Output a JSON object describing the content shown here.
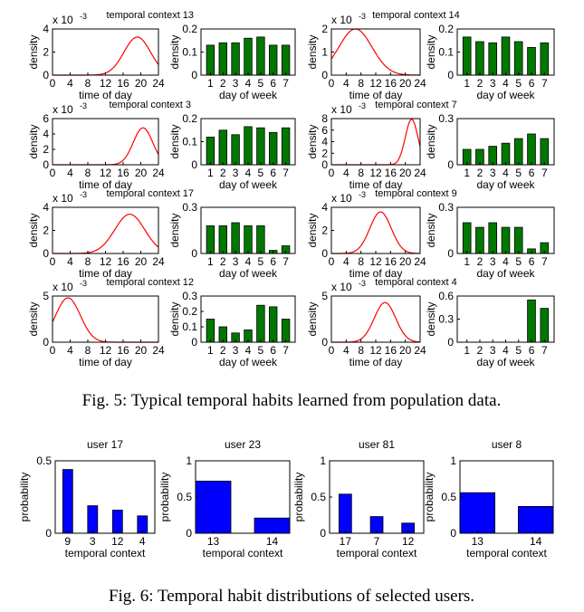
{
  "captions": {
    "fig5": "Fig. 5: Typical temporal habits learned from population data.",
    "fig6": "Fig. 6: Temporal habit distributions of selected users."
  },
  "colors": {
    "curve": "#ff0000",
    "green_bar": "#007800",
    "blue_bar": "#0000ff"
  },
  "chart_data": [
    {
      "type": "line",
      "title": "temporal context 13",
      "xlabel": "time of day",
      "ylabel": "density",
      "scale_label": "x 10",
      "scale_exp": "-3",
      "xlim": [
        0,
        24
      ],
      "ylim": [
        0,
        4
      ],
      "xticks": [
        "0",
        "4",
        "8",
        "12",
        "16",
        "20",
        "24"
      ],
      "yticks": [
        "0",
        "2",
        "4"
      ],
      "series": [
        {
          "type": "gaussian",
          "mean": 19.2,
          "sd": 3.0,
          "peak": 3.3
        }
      ]
    },
    {
      "type": "bar",
      "title": "",
      "xlabel": "day of week",
      "ylabel": "density",
      "ylim": [
        0,
        0.2
      ],
      "yticks": [
        "0",
        "0.1",
        "0.2"
      ],
      "categories": [
        "1",
        "2",
        "3",
        "4",
        "5",
        "6",
        "7"
      ],
      "values": [
        0.13,
        0.14,
        0.14,
        0.16,
        0.165,
        0.13,
        0.13
      ]
    },
    {
      "type": "line",
      "title": "temporal context 14",
      "xlabel": "time of day",
      "ylabel": "density",
      "scale_label": "x 10",
      "scale_exp": "-3",
      "xlim": [
        0,
        24
      ],
      "ylim": [
        0,
        2
      ],
      "xticks": [
        "0",
        "4",
        "8",
        "12",
        "16",
        "20",
        "24"
      ],
      "yticks": [
        "0",
        "1",
        "2"
      ],
      "series": [
        {
          "type": "gaussian",
          "mean": 6.5,
          "sd": 4.5,
          "peak": 2.0
        }
      ]
    },
    {
      "type": "bar",
      "title": "",
      "xlabel": "day of week",
      "ylabel": "density",
      "ylim": [
        0,
        0.2
      ],
      "yticks": [
        "0",
        "0.1",
        "0.2"
      ],
      "categories": [
        "1",
        "2",
        "3",
        "4",
        "5",
        "6",
        "7"
      ],
      "values": [
        0.165,
        0.145,
        0.14,
        0.165,
        0.145,
        0.12,
        0.14
      ]
    },
    {
      "type": "line",
      "title": "temporal context 3",
      "xlabel": "time of day",
      "ylabel": "density",
      "scale_label": "x 10",
      "scale_exp": "-3",
      "xlim": [
        0,
        24
      ],
      "ylim": [
        0,
        6
      ],
      "xticks": [
        "0",
        "4",
        "8",
        "12",
        "16",
        "20",
        "24"
      ],
      "yticks": [
        "0",
        "2",
        "4",
        "6"
      ],
      "series": [
        {
          "type": "gaussian",
          "mean": 20.5,
          "sd": 2.2,
          "peak": 4.8
        }
      ]
    },
    {
      "type": "bar",
      "title": "",
      "xlabel": "day of week",
      "ylabel": "density",
      "ylim": [
        0,
        0.2
      ],
      "yticks": [
        "0",
        "0.1",
        "0.2"
      ],
      "categories": [
        "1",
        "2",
        "3",
        "4",
        "5",
        "6",
        "7"
      ],
      "values": [
        0.12,
        0.15,
        0.13,
        0.165,
        0.16,
        0.14,
        0.16
      ]
    },
    {
      "type": "line",
      "title": "temporal context 7",
      "xlabel": "time of day",
      "ylabel": "density",
      "scale_label": "x 10",
      "scale_exp": "-3",
      "xlim": [
        0,
        24
      ],
      "ylim": [
        0,
        8
      ],
      "xticks": [
        "0",
        "4",
        "8",
        "12",
        "16",
        "20",
        "24"
      ],
      "yticks": [
        "0",
        "2",
        "4",
        "6",
        "8"
      ],
      "series": [
        {
          "type": "gaussian",
          "mean": 21.7,
          "sd": 1.7,
          "peak": 7.9
        }
      ]
    },
    {
      "type": "bar",
      "title": "",
      "xlabel": "day of week",
      "ylabel": "density",
      "ylim": [
        0,
        0.3
      ],
      "yticks": [
        "0",
        "0.3"
      ],
      "categories": [
        "1",
        "2",
        "3",
        "4",
        "5",
        "6",
        "7"
      ],
      "values": [
        0.1,
        0.1,
        0.12,
        0.14,
        0.17,
        0.2,
        0.17
      ]
    },
    {
      "type": "line",
      "title": "temporal context 17",
      "xlabel": "time of day",
      "ylabel": "density",
      "scale_label": "x 10",
      "scale_exp": "-3",
      "xlim": [
        0,
        24
      ],
      "ylim": [
        0,
        4
      ],
      "xticks": [
        "0",
        "4",
        "8",
        "12",
        "16",
        "20",
        "24"
      ],
      "yticks": [
        "0",
        "2",
        "4"
      ],
      "series": [
        {
          "type": "gaussian",
          "mean": 17.5,
          "sd": 3.4,
          "peak": 3.4
        }
      ]
    },
    {
      "type": "bar",
      "title": "",
      "xlabel": "day of week",
      "ylabel": "density",
      "ylim": [
        0,
        0.3
      ],
      "yticks": [
        "0",
        "0.3"
      ],
      "categories": [
        "1",
        "2",
        "3",
        "4",
        "5",
        "6",
        "7"
      ],
      "values": [
        0.18,
        0.18,
        0.2,
        0.18,
        0.18,
        0.02,
        0.05
      ]
    },
    {
      "type": "line",
      "title": "temporal context 9",
      "xlabel": "time of day",
      "ylabel": "density",
      "scale_label": "x 10",
      "scale_exp": "-3",
      "xlim": [
        0,
        24
      ],
      "ylim": [
        0,
        4
      ],
      "xticks": [
        "0",
        "4",
        "8",
        "12",
        "16",
        "20",
        "24"
      ],
      "yticks": [
        "0",
        "2",
        "4"
      ],
      "series": [
        {
          "type": "gaussian",
          "mean": 13.3,
          "sd": 2.9,
          "peak": 3.6
        }
      ]
    },
    {
      "type": "bar",
      "title": "",
      "xlabel": "day of week",
      "ylabel": "density",
      "ylim": [
        0,
        0.3
      ],
      "yticks": [
        "0",
        "0.3"
      ],
      "categories": [
        "1",
        "2",
        "3",
        "4",
        "5",
        "6",
        "7"
      ],
      "values": [
        0.2,
        0.17,
        0.2,
        0.17,
        0.17,
        0.03,
        0.07
      ]
    },
    {
      "type": "line",
      "title": "temporal context 12",
      "xlabel": "time of day",
      "ylabel": "density",
      "scale_label": "x 10",
      "scale_exp": "-3",
      "xlim": [
        0,
        24
      ],
      "ylim": [
        0,
        5
      ],
      "xticks": [
        "0",
        "4",
        "8",
        "12",
        "16",
        "20",
        "24"
      ],
      "yticks": [
        "0",
        "5"
      ],
      "series": [
        {
          "type": "gaussian",
          "mean": 3.5,
          "sd": 2.8,
          "peak": 4.8
        }
      ]
    },
    {
      "type": "bar",
      "title": "",
      "xlabel": "day of week",
      "ylabel": "density",
      "ylim": [
        0,
        0.3
      ],
      "yticks": [
        "0",
        "0.1",
        "0.2",
        "0.3"
      ],
      "categories": [
        "1",
        "2",
        "3",
        "4",
        "5",
        "6",
        "7"
      ],
      "values": [
        0.15,
        0.1,
        0.06,
        0.08,
        0.24,
        0.23,
        0.15
      ]
    },
    {
      "type": "line",
      "title": "temporal context 4",
      "xlabel": "time of day",
      "ylabel": "density",
      "scale_label": "x 10",
      "scale_exp": "-3",
      "xlim": [
        0,
        24
      ],
      "ylim": [
        0,
        5
      ],
      "xticks": [
        "0",
        "4",
        "8",
        "12",
        "16",
        "20",
        "24"
      ],
      "yticks": [
        "0",
        "5"
      ],
      "series": [
        {
          "type": "gaussian",
          "mean": 14.5,
          "sd": 2.9,
          "peak": 4.3
        }
      ]
    },
    {
      "type": "bar",
      "title": "",
      "xlabel": "day of week",
      "ylabel": "density",
      "ylim": [
        0,
        0.6
      ],
      "yticks": [
        "0",
        "0.3",
        "0.6"
      ],
      "categories": [
        "1",
        "2",
        "3",
        "4",
        "5",
        "6",
        "7"
      ],
      "values": [
        0,
        0,
        0,
        0,
        0,
        0.55,
        0.44
      ]
    },
    {
      "type": "bar",
      "title": "user 17",
      "xlabel": "temporal context",
      "ylabel": "probability",
      "ylim": [
        0,
        0.5
      ],
      "yticks": [
        "0",
        "0.5"
      ],
      "categories": [
        "9",
        "3",
        "12",
        "4"
      ],
      "values": [
        0.44,
        0.19,
        0.16,
        0.12
      ]
    },
    {
      "type": "bar",
      "title": "user 23",
      "xlabel": "temporal context",
      "ylabel": "probability",
      "ylim": [
        0,
        1
      ],
      "yticks": [
        "0",
        "0.5",
        "1"
      ],
      "categories": [
        "13",
        "14"
      ],
      "values": [
        0.72,
        0.21
      ]
    },
    {
      "type": "bar",
      "title": "user 81",
      "xlabel": "temporal context",
      "ylabel": "probability",
      "ylim": [
        0,
        1
      ],
      "yticks": [
        "0",
        "0.5",
        "1"
      ],
      "categories": [
        "17",
        "7",
        "12"
      ],
      "values": [
        0.54,
        0.23,
        0.14
      ]
    },
    {
      "type": "bar",
      "title": "user 8",
      "xlabel": "temporal context",
      "ylabel": "probability",
      "ylim": [
        0,
        1
      ],
      "yticks": [
        "0",
        "0.5",
        "1"
      ],
      "categories": [
        "13",
        "14"
      ],
      "values": [
        0.56,
        0.37
      ]
    }
  ]
}
